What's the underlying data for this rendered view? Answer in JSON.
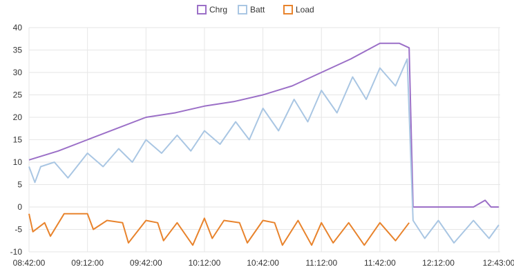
{
  "chart_data": {
    "type": "line",
    "title": "",
    "xlabel": "",
    "ylabel": "",
    "ylim": [
      -10,
      40
    ],
    "yticks": [
      40,
      35,
      30,
      25,
      20,
      15,
      10,
      5,
      0,
      -5,
      -10
    ],
    "xticks": [
      "08:42:00",
      "09:12:00",
      "09:42:00",
      "10:12:00",
      "10:42:00",
      "11:12:00",
      "11:42:00",
      "12:12:00",
      "12:43:00"
    ],
    "grid": true,
    "legend": "top-center",
    "series": [
      {
        "name": "Chrg",
        "color": "#9b6fc7",
        "x": [
          "08:42:00",
          "08:57:00",
          "09:12:00",
          "09:27:00",
          "09:42:00",
          "09:57:00",
          "10:12:00",
          "10:27:00",
          "10:42:00",
          "10:57:00",
          "11:12:00",
          "11:27:00",
          "11:42:00",
          "11:52:00",
          "11:57:00",
          "11:59:00",
          "12:12:00",
          "12:30:00",
          "12:36:00",
          "12:39:00",
          "12:43:00"
        ],
        "values": [
          10.5,
          12.5,
          15,
          17.5,
          20,
          21,
          22.5,
          23.5,
          25,
          27,
          30,
          33,
          36.5,
          36.5,
          35.5,
          0,
          0,
          0,
          1.5,
          0,
          0
        ]
      },
      {
        "name": "Batt",
        "color": "#a9c6e3",
        "x": [
          "08:42:00",
          "08:45:00",
          "08:48:00",
          "08:55:00",
          "09:02:00",
          "09:12:00",
          "09:20:00",
          "09:28:00",
          "09:35:00",
          "09:42:00",
          "09:50:00",
          "09:58:00",
          "10:05:00",
          "10:12:00",
          "10:20:00",
          "10:28:00",
          "10:35:00",
          "10:42:00",
          "10:50:00",
          "10:58:00",
          "11:05:00",
          "11:12:00",
          "11:20:00",
          "11:28:00",
          "11:35:00",
          "11:42:00",
          "11:50:00",
          "11:56:00",
          "11:59:00",
          "12:05:00",
          "12:12:00",
          "12:20:00",
          "12:30:00",
          "12:38:00",
          "12:43:00"
        ],
        "values": [
          9,
          5.5,
          9,
          10,
          6.5,
          12,
          9,
          13,
          10,
          15,
          12,
          16,
          12.5,
          17,
          14,
          19,
          15,
          22,
          17,
          24,
          19,
          26,
          21,
          29,
          24,
          31,
          27,
          33,
          -3,
          -7,
          -3,
          -8,
          -3,
          -7,
          -4
        ]
      },
      {
        "name": "Load",
        "color": "#e8832c",
        "x": [
          "08:42:00",
          "08:44:00",
          "08:50:00",
          "08:53:00",
          "09:00:00",
          "09:12:00",
          "09:15:00",
          "09:22:00",
          "09:30:00",
          "09:33:00",
          "09:42:00",
          "09:48:00",
          "09:51:00",
          "09:58:00",
          "10:06:00",
          "10:12:00",
          "10:16:00",
          "10:22:00",
          "10:30:00",
          "10:34:00",
          "10:42:00",
          "10:48:00",
          "10:52:00",
          "11:00:00",
          "11:07:00",
          "11:12:00",
          "11:18:00",
          "11:26:00",
          "11:34:00",
          "11:42:00",
          "11:50:00",
          "11:57:00"
        ],
        "values": [
          -1.5,
          -5.5,
          -3.5,
          -6.5,
          -1.5,
          -1.5,
          -5,
          -3,
          -3.5,
          -8,
          -3,
          -3.5,
          -7.5,
          -3.5,
          -8.5,
          -2.5,
          -7,
          -3,
          -3.5,
          -8,
          -3,
          -3.5,
          -8.5,
          -3,
          -8.5,
          -3.5,
          -8,
          -3.5,
          -8.5,
          -3.5,
          -7.5,
          -3.5
        ]
      }
    ]
  }
}
